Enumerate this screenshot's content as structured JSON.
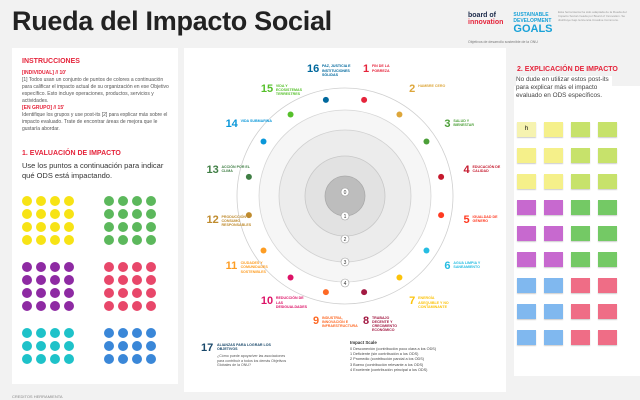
{
  "title": "Rueda del Impacto Social",
  "logos": {
    "boi_line1": "board of",
    "boi_line2": "innovation",
    "sdg_line1": "SUSTAINABLE",
    "sdg_line2": "DEVELOPMENT",
    "sdg_goals": "GOALS",
    "sub": "Objetivos de desarrollo sostenible de la ONU"
  },
  "top_note": "Esta herramienta ha sido adaptada de la Rueda del Impacto Social creada por Board of Innovation. Se distribuye bajo la licencia Creative Commons.",
  "left": {
    "instructions_title": "INSTRUCCIONES",
    "individual_header": "[INDIVIDUAL] // 10'",
    "individual_text": "[1] Todos usan un conjunto de puntos de colores a continuación para calificar el impacto actual de su organización en ese Objetivo específico. Esto incluye operaciones, productos, servicios y actividades.",
    "group_header": "[EN GRUPO] // 15'",
    "group_text": "Identifique los grupos y use post-its [2] para explicar más sobre el impacto evaluado. Trate de encontrar áreas de mejora que le gustaría abordar.",
    "eval_title": "1. EVALUACIÓN DE IMPACTO",
    "eval_text": "Use los puntos a continuación para indicar qué ODS está impactando.",
    "dot_groups": [
      {
        "color": "#f7e315",
        "count": 16
      },
      {
        "color": "#5cb85c",
        "count": 16
      },
      {
        "color": "#8e2aa3",
        "count": 16
      },
      {
        "color": "#e8476a",
        "count": 16
      },
      {
        "color": "#1ec2c9",
        "count": 12
      },
      {
        "color": "#3a87d8",
        "count": 12
      }
    ]
  },
  "wheel": {
    "goals": [
      {
        "n": "1",
        "label": "FIN DE LA POBREZA",
        "color": "#e5243b"
      },
      {
        "n": "2",
        "label": "HAMBRE CERO",
        "color": "#dda63a"
      },
      {
        "n": "3",
        "label": "SALUD Y BIENESTAR",
        "color": "#4c9f38"
      },
      {
        "n": "4",
        "label": "EDUCACIÓN DE CALIDAD",
        "color": "#c5192d"
      },
      {
        "n": "5",
        "label": "IGUALDAD DE GÉNERO",
        "color": "#ff3a21"
      },
      {
        "n": "6",
        "label": "AGUA LIMPIA Y SANEAMIENTO",
        "color": "#26bde2"
      },
      {
        "n": "7",
        "label": "ENERGÍA ASEQUIBLE Y NO CONTAMINANTE",
        "color": "#fcc30b"
      },
      {
        "n": "8",
        "label": "TRABAJO DECENTE Y CRECIMIENTO ECONÓMICO",
        "color": "#a21942"
      },
      {
        "n": "9",
        "label": "INDUSTRIA, INNOVACIÓN E INFRAESTRUCTURA",
        "color": "#fd6925"
      },
      {
        "n": "10",
        "label": "REDUCCIÓN DE LAS DESIGUALDADES",
        "color": "#dd1367"
      },
      {
        "n": "11",
        "label": "CIUDADES Y COMUNIDADES SOSTENIBLES",
        "color": "#fd9d24"
      },
      {
        "n": "12",
        "label": "PRODUCCIÓN Y CONSUMO RESPONSABLES",
        "color": "#bf8b2e"
      },
      {
        "n": "13",
        "label": "ACCIÓN POR EL CLIMA",
        "color": "#3f7e44"
      },
      {
        "n": "14",
        "label": "VIDA SUBMARINA",
        "color": "#0a97d9"
      },
      {
        "n": "15",
        "label": "VIDA Y ECOSISTEMAS TERRESTRES",
        "color": "#56c02b"
      },
      {
        "n": "16",
        "label": "PAZ, JUSTICIA E INSTITUCIONES SÓLIDAS",
        "color": "#00689d"
      }
    ],
    "scale_labels": [
      "0",
      "1",
      "2",
      "3",
      "4"
    ],
    "goal17_num": "17",
    "goal17_label": "ALIANZAS PARA LOGRAR LOS OBJETIVOS",
    "goal17_q": "¿Cómo puede apoyar/ver las asociaciones para contribuir a todos los demás Objetivos Globales de la ONU?",
    "legend_title": "Impact Scale",
    "legend": [
      "0 Desconexión (contribución poco clara a los ODS)",
      "1 Deficiente (sin contribución a los ODS)",
      "2 Promedio (contribución parcial a los ODS)",
      "3 Bueno (contribución relevante a los ODS)",
      "4 Excelente (contribución principal a los ODS)"
    ],
    "colors": {
      "inner": "#bdbdbd",
      "ring": "#e6e6e6"
    }
  },
  "right": {
    "title": "2. EXPLICACIÓN DE IMPACTO",
    "text": "No dude en utilizar estos post-its para explicar más el impacto evaluado en ODS específicos.",
    "sticky_rows": [
      [
        "#f6f3b0",
        "#f5f08a",
        "#c7e26b",
        "#c7e26b"
      ],
      [
        "#f5f08a",
        "#f5f08a",
        "#c7e26b",
        "#c7e26b"
      ],
      [
        "#f5f08a",
        "#f5f08a",
        "#c7e26b",
        "#c7e26b"
      ],
      [
        "#c769cf",
        "#c769cf",
        "#74c965",
        "#74c965"
      ],
      [
        "#c769cf",
        "#c769cf",
        "#74c965",
        "#74c965"
      ],
      [
        "#c769cf",
        "#c769cf",
        "#74c965",
        "#74c965"
      ],
      [
        "#80b8ef",
        "#80b8ef",
        "#ef6d86",
        "#ef6d86"
      ],
      [
        "#80b8ef",
        "#80b8ef",
        "#ef6d86",
        "#ef6d86"
      ],
      [
        "#80b8ef",
        "#80b8ef",
        "#ef6d86",
        "#ef6d86"
      ]
    ],
    "first_sticky_text": "h"
  },
  "footer": "CREDITOS HERRAMIENTA"
}
